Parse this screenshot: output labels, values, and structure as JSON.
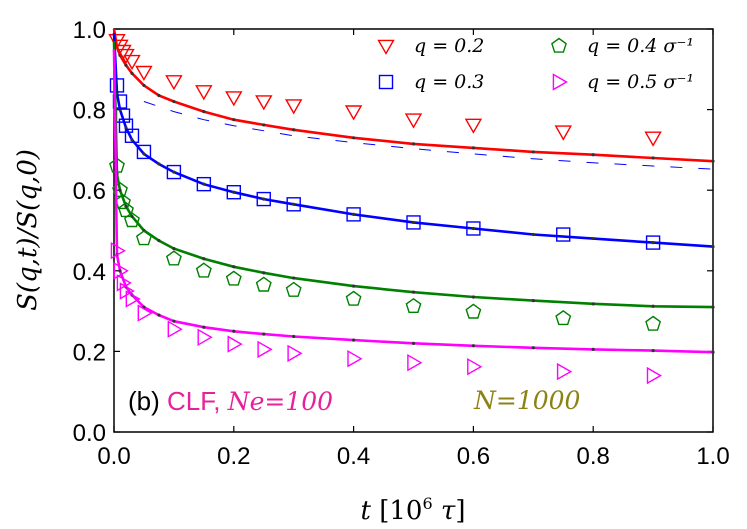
{
  "chart_data": {
    "type": "line",
    "xlabel": "t [10^6 τ]",
    "ylabel": "S(q,t)/S(q,0)",
    "xlim": [
      0.0,
      1.0
    ],
    "ylim": [
      0.0,
      1.0
    ],
    "xticks": [
      "0.0",
      "0.2",
      "0.4",
      "0.6",
      "0.8",
      "1.0"
    ],
    "yticks": [
      "0.0",
      "0.2",
      "0.4",
      "0.6",
      "0.8",
      "1.0"
    ],
    "annotation_left": {
      "prefix": "(b) ",
      "model": "CLF, ",
      "param": "Ne=100",
      "color": "#e6219b"
    },
    "annotation_right": {
      "text": "N=1000",
      "color": "#8c8214"
    },
    "series": [
      {
        "name": "q=0.2",
        "legend": "q = 0.2",
        "color": "#ff0000",
        "marker": "triangle-down",
        "x": [
          0.005,
          0.01,
          0.015,
          0.02,
          0.03,
          0.05,
          0.1,
          0.15,
          0.2,
          0.25,
          0.3,
          0.4,
          0.5,
          0.6,
          0.75,
          0.9
        ],
        "values": [
          0.972,
          0.958,
          0.945,
          0.935,
          0.92,
          0.893,
          0.87,
          0.845,
          0.83,
          0.82,
          0.81,
          0.795,
          0.775,
          0.762,
          0.745,
          0.73
        ],
        "fit_x": [
          0.0,
          0.005,
          0.01,
          0.02,
          0.03,
          0.05,
          0.075,
          0.1,
          0.15,
          0.2,
          0.25,
          0.3,
          0.4,
          0.5,
          0.6,
          0.7,
          0.8,
          0.9,
          1.0
        ],
        "fit_y": [
          1.0,
          0.955,
          0.935,
          0.91,
          0.89,
          0.86,
          0.835,
          0.82,
          0.795,
          0.775,
          0.762,
          0.75,
          0.73,
          0.715,
          0.705,
          0.695,
          0.688,
          0.68,
          0.672
        ]
      },
      {
        "name": "q=0.3",
        "legend": "q = 0.3",
        "color": "#0000ff",
        "marker": "square",
        "x": [
          0.005,
          0.01,
          0.015,
          0.02,
          0.03,
          0.05,
          0.1,
          0.15,
          0.2,
          0.25,
          0.3,
          0.4,
          0.5,
          0.6,
          0.75,
          0.9
        ],
        "values": [
          0.86,
          0.82,
          0.785,
          0.76,
          0.735,
          0.695,
          0.645,
          0.615,
          0.595,
          0.578,
          0.565,
          0.54,
          0.52,
          0.505,
          0.49,
          0.47
        ],
        "fit_x": [
          0.0,
          0.005,
          0.01,
          0.02,
          0.03,
          0.05,
          0.075,
          0.1,
          0.15,
          0.2,
          0.25,
          0.3,
          0.4,
          0.5,
          0.6,
          0.7,
          0.8,
          0.9,
          1.0
        ],
        "fit_y": [
          0.99,
          0.84,
          0.8,
          0.755,
          0.725,
          0.69,
          0.665,
          0.645,
          0.615,
          0.595,
          0.578,
          0.565,
          0.54,
          0.52,
          0.505,
          0.49,
          0.48,
          0.47,
          0.46
        ],
        "dashed_x": [
          0.05,
          0.1,
          0.15,
          0.2,
          0.3,
          0.4,
          0.5,
          0.6,
          0.7,
          0.8,
          0.9,
          1.0
        ],
        "dashed_y": [
          0.82,
          0.795,
          0.775,
          0.76,
          0.735,
          0.718,
          0.703,
          0.69,
          0.678,
          0.668,
          0.66,
          0.652
        ]
      },
      {
        "name": "q=0.4 σ^-1",
        "legend": "q = 0.4 σ⁻¹",
        "color": "#008000",
        "marker": "pentagon",
        "x": [
          0.005,
          0.01,
          0.015,
          0.02,
          0.03,
          0.05,
          0.1,
          0.15,
          0.2,
          0.25,
          0.3,
          0.4,
          0.5,
          0.6,
          0.75,
          0.9
        ],
        "values": [
          0.66,
          0.6,
          0.57,
          0.55,
          0.525,
          0.48,
          0.43,
          0.4,
          0.38,
          0.365,
          0.352,
          0.33,
          0.312,
          0.298,
          0.282,
          0.268
        ],
        "fit_x": [
          0.0,
          0.005,
          0.01,
          0.02,
          0.03,
          0.05,
          0.075,
          0.1,
          0.15,
          0.2,
          0.25,
          0.3,
          0.4,
          0.5,
          0.6,
          0.7,
          0.8,
          0.9,
          1.0
        ],
        "fit_y": [
          0.97,
          0.64,
          0.6,
          0.56,
          0.535,
          0.5,
          0.475,
          0.455,
          0.43,
          0.41,
          0.395,
          0.382,
          0.362,
          0.347,
          0.335,
          0.326,
          0.318,
          0.312,
          0.31
        ]
      },
      {
        "name": "q=0.5 σ^-1",
        "legend": "q = 0.5 σ⁻¹",
        "color": "#ff00ff",
        "marker": "triangle-right",
        "x": [
          0.005,
          0.01,
          0.015,
          0.02,
          0.03,
          0.05,
          0.1,
          0.15,
          0.2,
          0.25,
          0.3,
          0.4,
          0.5,
          0.6,
          0.75,
          0.9
        ],
        "values": [
          0.45,
          0.4,
          0.37,
          0.35,
          0.33,
          0.295,
          0.255,
          0.235,
          0.218,
          0.205,
          0.195,
          0.182,
          0.172,
          0.162,
          0.15,
          0.14
        ],
        "fit_x": [
          0.0,
          0.005,
          0.01,
          0.02,
          0.03,
          0.05,
          0.075,
          0.1,
          0.15,
          0.2,
          0.25,
          0.3,
          0.4,
          0.5,
          0.6,
          0.7,
          0.8,
          0.9,
          1.0
        ],
        "fit_y": [
          0.95,
          0.44,
          0.4,
          0.36,
          0.34,
          0.31,
          0.29,
          0.275,
          0.26,
          0.25,
          0.243,
          0.237,
          0.228,
          0.22,
          0.214,
          0.209,
          0.205,
          0.202,
          0.198
        ]
      }
    ]
  }
}
